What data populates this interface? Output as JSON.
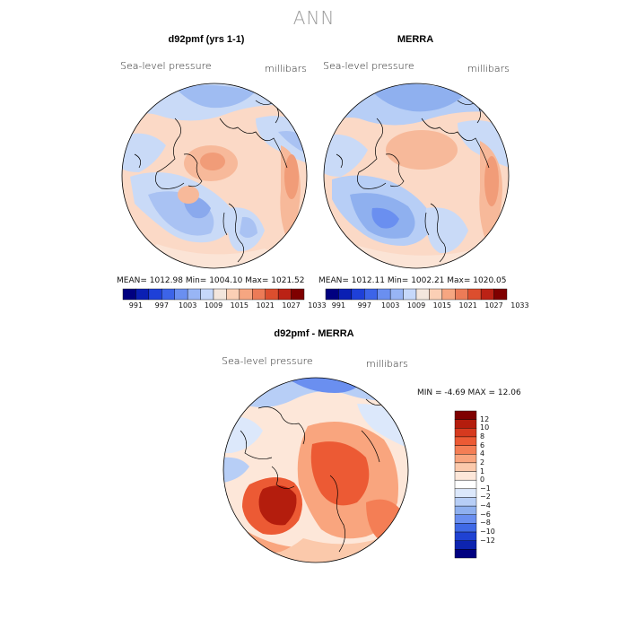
{
  "page_title": "ANN",
  "panels": [
    {
      "title": "d92pmf (yrs 1-1)",
      "variable": "Sea-level pressure",
      "units": "millibars",
      "stats": "MEAN= 1012.98   Min= 1004.10   Max= 1021.52"
    },
    {
      "title": "MERRA",
      "variable": "Sea-level pressure",
      "units": "millibars",
      "stats": "MEAN= 1012.11   Min= 1002.21   Max= 1020.05"
    },
    {
      "title": "d92pmf - MERRA",
      "variable": "Sea-level pressure",
      "units": "millibars",
      "stats": "MIN =   -4.69  MAX =   12.06"
    }
  ],
  "colorbar_abs": {
    "colors": [
      "#000080",
      "#0a1fb3",
      "#1e40d8",
      "#3c64e8",
      "#6a8ff0",
      "#98b5f5",
      "#c6d8fa",
      "#f3e6dd",
      "#fbcfb5",
      "#f6a681",
      "#ec7b57",
      "#dc4e2e",
      "#bb2215",
      "#7f0000"
    ],
    "ticks": [
      "991",
      "997",
      "1003",
      "1009",
      "1015",
      "1021",
      "1027",
      "1033"
    ]
  },
  "colorbar_diff": {
    "colors": [
      "#7f0000",
      "#b41d0d",
      "#d63a1f",
      "#ec5a34",
      "#f47e55",
      "#f9a57e",
      "#fbc9ab",
      "#fde7d9",
      "#ffffff",
      "#dce8fb",
      "#b7cef6",
      "#8fb0ef",
      "#6a8ff0",
      "#3f69e6",
      "#1f42d3",
      "#0d24b0",
      "#000080"
    ],
    "ticks": [
      "12",
      "10",
      "8",
      "6",
      "4",
      "2",
      "1",
      "0",
      "−1",
      "−2",
      "−4",
      "−6",
      "−8",
      "−10",
      "−12"
    ]
  }
}
